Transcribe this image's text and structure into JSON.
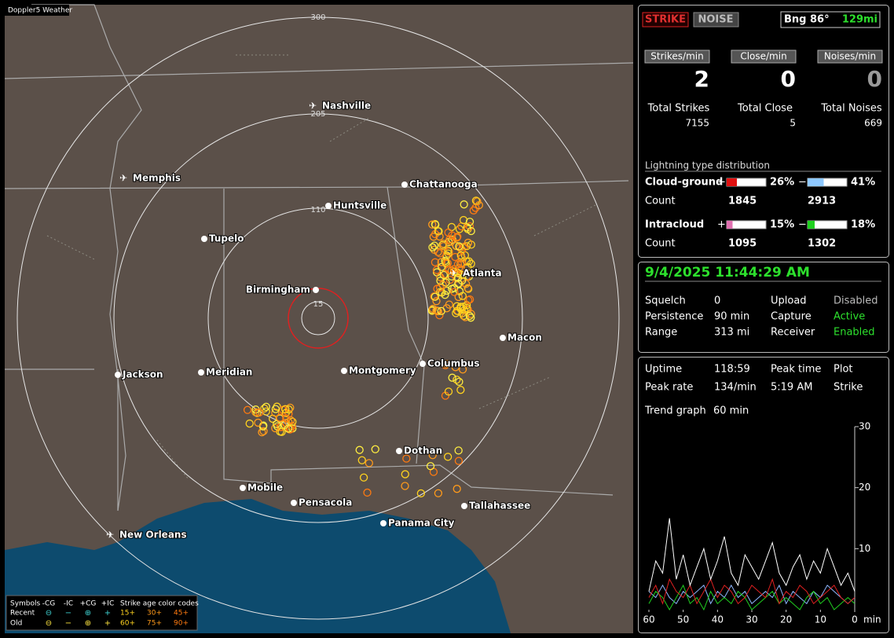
{
  "map": {
    "title": "Doppler5 Weather",
    "ring_labels": [
      "300",
      "205",
      "110",
      "15"
    ],
    "cities": [
      "Nashville",
      "Memphis",
      "Chattanooga",
      "Huntsville",
      "Tupelo",
      "Atlanta",
      "Birmingham",
      "Macon",
      "Columbus",
      "Montgomery",
      "Jackson",
      "Meridian",
      "Dothan",
      "Mobile",
      "Pensacola",
      "Tallahassee",
      "Panama City",
      "New Orleans"
    ],
    "legend": {
      "symbols": "Symbols",
      "columns": [
        "-CG",
        "-IC",
        "+CG",
        "+IC"
      ],
      "age_title": "Strike age color codes",
      "rows": [
        "Recent",
        "Old"
      ],
      "ages": [
        "15+",
        "30+",
        "45+",
        "60+",
        "75+",
        "90+"
      ]
    }
  },
  "status": {
    "buttons": [
      "STRIKE",
      "NOISE"
    ],
    "bearing": "Bng 86°",
    "distance": "129mi",
    "rates": [
      {
        "label": "Strikes/min",
        "value": "2"
      },
      {
        "label": "Close/min",
        "value": "0"
      },
      {
        "label": "Noises/min",
        "value": "0"
      }
    ],
    "totals": [
      {
        "label": "Total Strikes",
        "value": "7155"
      },
      {
        "label": "Total Close",
        "value": "5"
      },
      {
        "label": "Total Noises",
        "value": "669"
      }
    ]
  },
  "distribution": {
    "title": "Lightning type distribution",
    "plus": "+",
    "minus": "−",
    "count_label": "Count",
    "rows": [
      {
        "label": "Cloud-ground",
        "pos": {
          "value": 26,
          "label": "26%"
        },
        "neg": {
          "value": 41,
          "label": "41%"
        },
        "pos_count": "1845",
        "neg_count": "2913"
      },
      {
        "label": "Intracloud",
        "pos": {
          "value": 15,
          "label": "15%"
        },
        "neg": {
          "value": 18,
          "label": "18%"
        },
        "pos_count": "1095",
        "neg_count": "1302"
      }
    ]
  },
  "clock": "9/4/2025 11:44:29 AM",
  "settings": [
    [
      "Squelch",
      "0",
      "Upload",
      "Disabled"
    ],
    [
      "Persistence",
      "90 min",
      "Capture",
      "Active"
    ],
    [
      "Range",
      "313 mi",
      "Receiver",
      "Enabled"
    ]
  ],
  "stats": [
    [
      "Uptime",
      "118:59",
      "Peak time",
      "Plot"
    ],
    [
      "Peak rate",
      "134/min",
      "5:19 AM",
      "Strike"
    ],
    [
      "Trend graph",
      "60 min"
    ]
  ],
  "trend": {
    "x_unit": "min",
    "xlim": [
      60,
      0
    ],
    "ylim": [
      0,
      30
    ],
    "xticks": [
      60,
      50,
      40,
      30,
      20,
      10,
      0
    ],
    "yticks": [
      10,
      20,
      30
    ],
    "x": [
      60,
      58,
      56,
      54,
      52,
      50,
      48,
      46,
      44,
      42,
      40,
      38,
      36,
      34,
      32,
      30,
      28,
      26,
      24,
      22,
      20,
      18,
      16,
      14,
      12,
      10,
      8,
      6,
      4,
      2,
      0
    ],
    "series": [
      {
        "color": "#ffffff",
        "values": [
          3,
          8,
          6,
          15,
          5,
          9,
          4,
          7,
          10,
          5,
          8,
          12,
          6,
          4,
          9,
          7,
          5,
          8,
          11,
          6,
          4,
          7,
          9,
          5,
          8,
          6,
          10,
          7,
          4,
          6,
          3
        ]
      },
      {
        "color": "#e02020",
        "values": [
          2,
          4,
          1,
          5,
          3,
          2,
          4,
          1,
          3,
          5,
          2,
          4,
          3,
          1,
          2,
          4,
          3,
          2,
          5,
          1,
          3,
          2,
          4,
          3,
          1,
          2,
          3,
          4,
          2,
          1,
          2
        ]
      },
      {
        "color": "#20d020",
        "values": [
          1,
          3,
          2,
          0,
          2,
          4,
          1,
          2,
          0,
          3,
          1,
          2,
          1,
          3,
          2,
          0,
          1,
          2,
          3,
          1,
          2,
          1,
          0,
          2,
          3,
          1,
          2,
          0,
          1,
          2,
          1
        ]
      },
      {
        "color": "#8fb8ff",
        "values": [
          3,
          2,
          4,
          2,
          1,
          3,
          2,
          3,
          4,
          1,
          3,
          2,
          4,
          2,
          3,
          1,
          2,
          3,
          2,
          4,
          1,
          3,
          2,
          1,
          3,
          2,
          4,
          3,
          2,
          1,
          2
        ]
      }
    ]
  }
}
